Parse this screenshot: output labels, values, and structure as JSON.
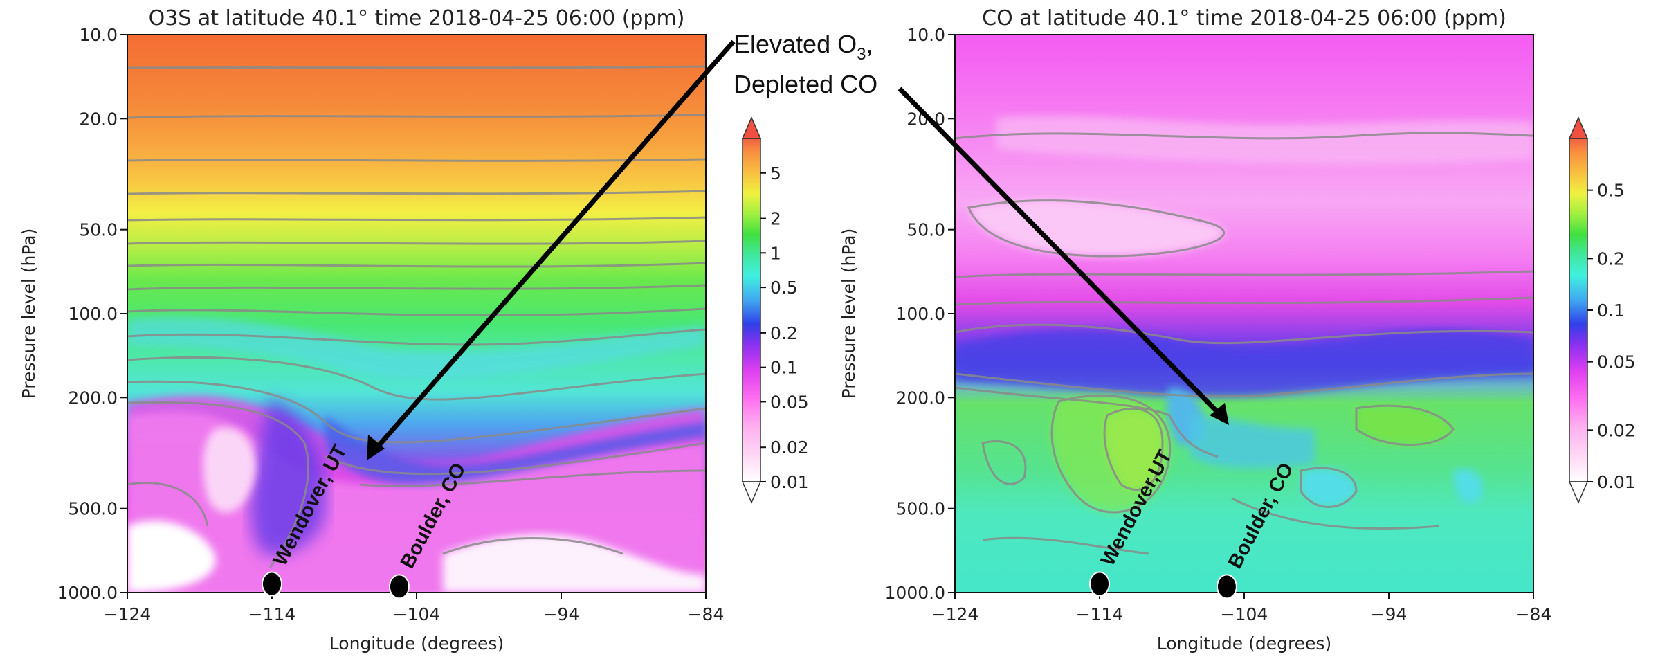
{
  "figure": {
    "annotation": {
      "line1_main": "Elevated O",
      "line1_sub": "3",
      "line1_tail": ",",
      "line2": "Depleted CO"
    },
    "station_labels": [
      "Wendover, UT",
      "Boulder, CO"
    ],
    "station_labels_right": [
      "Wendover,UT",
      "Boulder, CO"
    ]
  },
  "chart_data": [
    {
      "type": "heatmap",
      "title": "O3S at latitude 40.1° time 2018-04-25 06:00 (ppm)",
      "xlabel": "Longitude (degrees)",
      "ylabel": "Pressure level (hPa)",
      "xlim": [
        -124,
        -84
      ],
      "ylim": [
        1000,
        10
      ],
      "y_scale": "log",
      "x_ticks": [
        "−124",
        "−114",
        "−104",
        "−94",
        "−84"
      ],
      "x_tick_values": [
        -124,
        -114,
        -104,
        -94,
        -84
      ],
      "y_ticks": [
        "10.0",
        "20.0",
        "50.0",
        "100.0",
        "200.0",
        "500.0",
        "1000.0"
      ],
      "y_tick_values": [
        10,
        20,
        50,
        100,
        200,
        500,
        1000
      ],
      "colorbar": {
        "scale": "log",
        "ticks": [
          "5",
          "2",
          "1",
          "0.5",
          "0.2",
          "0.1",
          "0.05",
          "0.02",
          "0.01"
        ],
        "tick_values": [
          5,
          2,
          1,
          0.5,
          0.2,
          0.1,
          0.05,
          0.02,
          0.01
        ],
        "range": [
          0.01,
          10
        ]
      },
      "stations": [
        {
          "name": "Wendover, UT",
          "lon": -114,
          "pressure": 900
        },
        {
          "name": "Boulder, CO",
          "lon": -105.2,
          "pressure": 920
        }
      ]
    },
    {
      "type": "heatmap",
      "title": "CO at latitude 40.1° time 2018-04-25 06:00 (ppm)",
      "xlabel": "Longitude (degrees)",
      "ylabel": "Pressure level (hPa)",
      "xlim": [
        -124,
        -84
      ],
      "ylim": [
        1000,
        10
      ],
      "y_scale": "log",
      "x_ticks": [
        "−124",
        "−114",
        "−104",
        "−94",
        "−84"
      ],
      "x_tick_values": [
        -124,
        -114,
        -104,
        -94,
        -84
      ],
      "y_ticks": [
        "10.0",
        "20.0",
        "50.0",
        "100.0",
        "200.0",
        "500.0",
        "1000.0"
      ],
      "y_tick_values": [
        10,
        20,
        50,
        100,
        200,
        500,
        1000
      ],
      "colorbar": {
        "scale": "log",
        "ticks": [
          "0.5",
          "0.2",
          "0.1",
          "0.05",
          "0.02",
          "0.01"
        ],
        "tick_values": [
          0.5,
          0.2,
          0.1,
          0.05,
          0.02,
          0.01
        ],
        "range": [
          0.01,
          1
        ]
      },
      "stations": [
        {
          "name": "Wendover,UT",
          "lon": -114,
          "pressure": 900
        },
        {
          "name": "Boulder, CO",
          "lon": -105.2,
          "pressure": 920
        }
      ]
    }
  ]
}
